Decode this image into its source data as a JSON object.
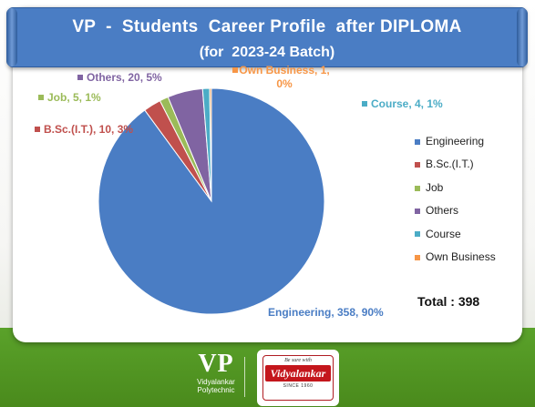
{
  "header": {
    "title_line1": "VP  -  Students  Career Profile  after DIPLOMA",
    "title_line2": "(for  2023-24 Batch)"
  },
  "chart_data": {
    "type": "pie",
    "categories": [
      "Engineering",
      "B.Sc.(I.T.)",
      "Job",
      "Others",
      "Course",
      "Own Business"
    ],
    "values": [
      358,
      10,
      5,
      20,
      4,
      1
    ],
    "percent_labels": [
      "90%",
      "3%",
      "1%",
      "5%",
      "1%",
      "0%"
    ],
    "colors": [
      "#4a7dc4",
      "#c0504d",
      "#9bbb59",
      "#8064a2",
      "#4bacc6",
      "#f79646"
    ],
    "data_labels": [
      "Engineering, 358, 90%",
      "B.Sc.(I.T.), 10, 3%",
      "Job, 5, 1%",
      "Others, 20, 5%",
      "Course, 4, 1%",
      "Own Business, 1, 0%"
    ],
    "legend": [
      "Engineering",
      "B.Sc.(I.T.)",
      "Job",
      "Others",
      "Course",
      "Own Business"
    ],
    "legend_position": "right",
    "total_label": "Total : 398"
  },
  "footer": {
    "vp_logo_text": "VP",
    "vp_logo_sub1": "Vidyalankar",
    "vp_logo_sub2": "Polytechnic",
    "badge_top": "Be sure with",
    "badge_name": "Vidyalankar",
    "badge_bottom": "SINCE 1960"
  }
}
